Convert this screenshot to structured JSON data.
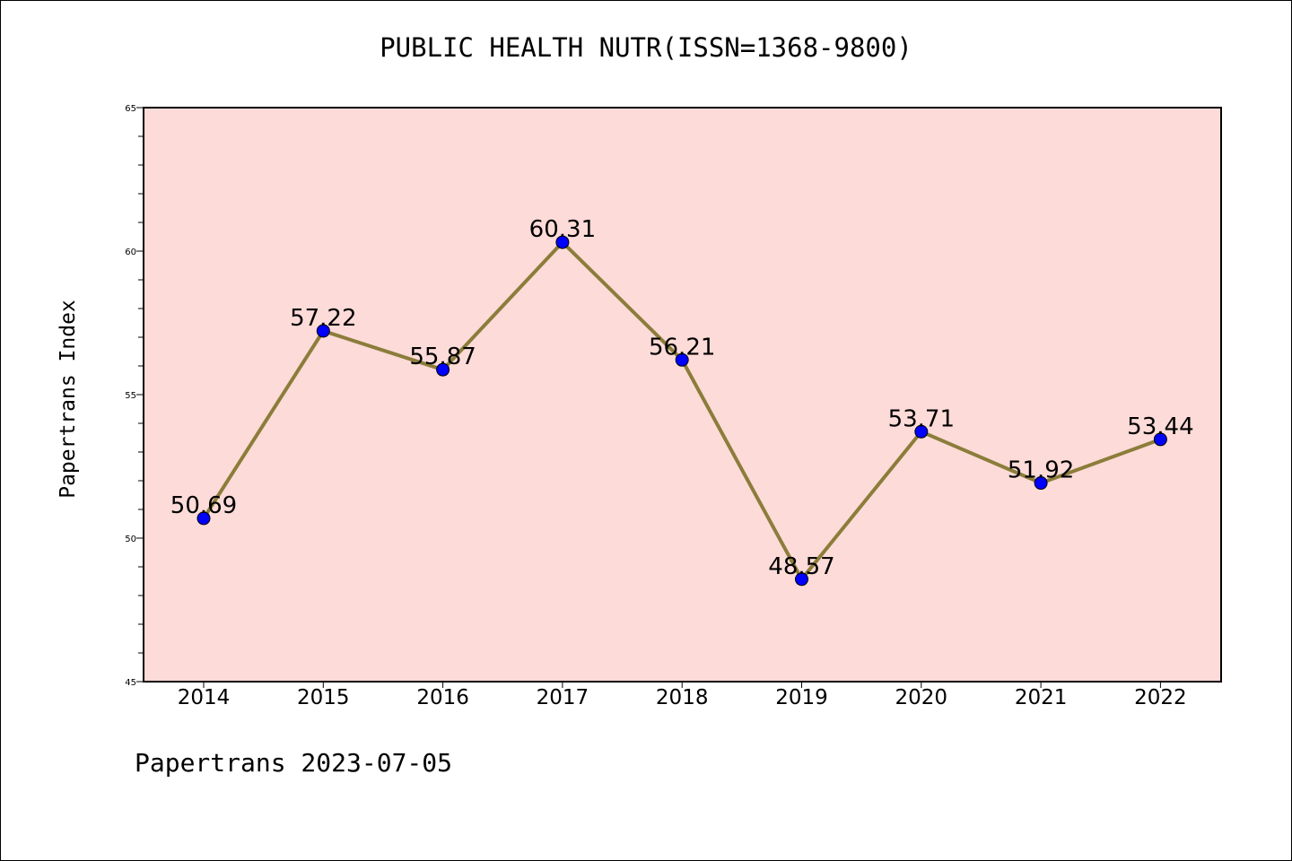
{
  "chart_data": {
    "type": "line",
    "title": "PUBLIC HEALTH NUTR(ISSN=1368-9800)",
    "xlabel": "",
    "ylabel": "Papertrans Index",
    "x": [
      "2014",
      "2015",
      "2016",
      "2017",
      "2018",
      "2019",
      "2020",
      "2021",
      "2022"
    ],
    "values": [
      50.69,
      57.22,
      55.87,
      60.31,
      56.21,
      48.57,
      53.71,
      51.92,
      53.44
    ],
    "data_labels": [
      "50.69",
      "57.22",
      "55.87",
      "60.31",
      "56.21",
      "48.57",
      "53.71",
      "51.92",
      "53.44"
    ],
    "ylim": [
      45,
      65
    ],
    "yticks": [
      "45",
      "50",
      "55",
      "60",
      "65"
    ],
    "grid": false,
    "line_color": "#8b7d3a",
    "marker_color": "#0000ff",
    "plot_background": "#fddbd8"
  },
  "footer": "Papertrans 2023-07-05"
}
